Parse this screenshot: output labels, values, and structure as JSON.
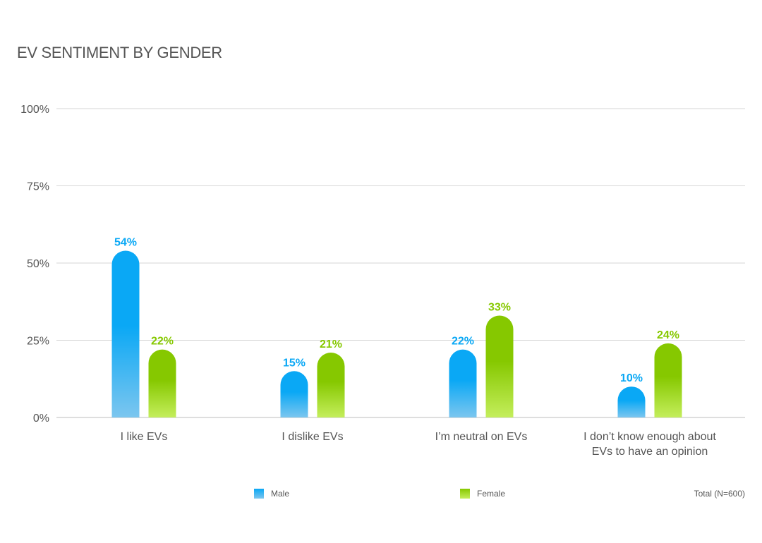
{
  "chart_data": {
    "type": "bar",
    "title": "EV SENTIMENT BY GENDER",
    "categories": [
      [
        "I like EVs"
      ],
      [
        "I dislike EVs"
      ],
      [
        "I’m neutral on EVs"
      ],
      [
        "I don’t know enough about",
        "EVs to have an opinion"
      ]
    ],
    "series": [
      {
        "name": "Male",
        "values": [
          54,
          15,
          22,
          10
        ],
        "labels": [
          "54%",
          "15%",
          "22%",
          "10%"
        ],
        "color": "#0aa8f5",
        "color_light": "#7cc6ef"
      },
      {
        "name": "Female",
        "values": [
          22,
          21,
          33,
          24
        ],
        "labels": [
          "22%",
          "21%",
          "33%",
          "24%"
        ],
        "color": "#86c800",
        "color_light": "#c4ee5c"
      }
    ],
    "ylim": [
      0,
      100
    ],
    "yticks": [
      0,
      25,
      50,
      75,
      100
    ],
    "ytick_labels": [
      "0%",
      "25%",
      "50%",
      "75%",
      "100%"
    ],
    "grid": true,
    "legend": "bottom-center",
    "note": "Total (N=600)"
  }
}
